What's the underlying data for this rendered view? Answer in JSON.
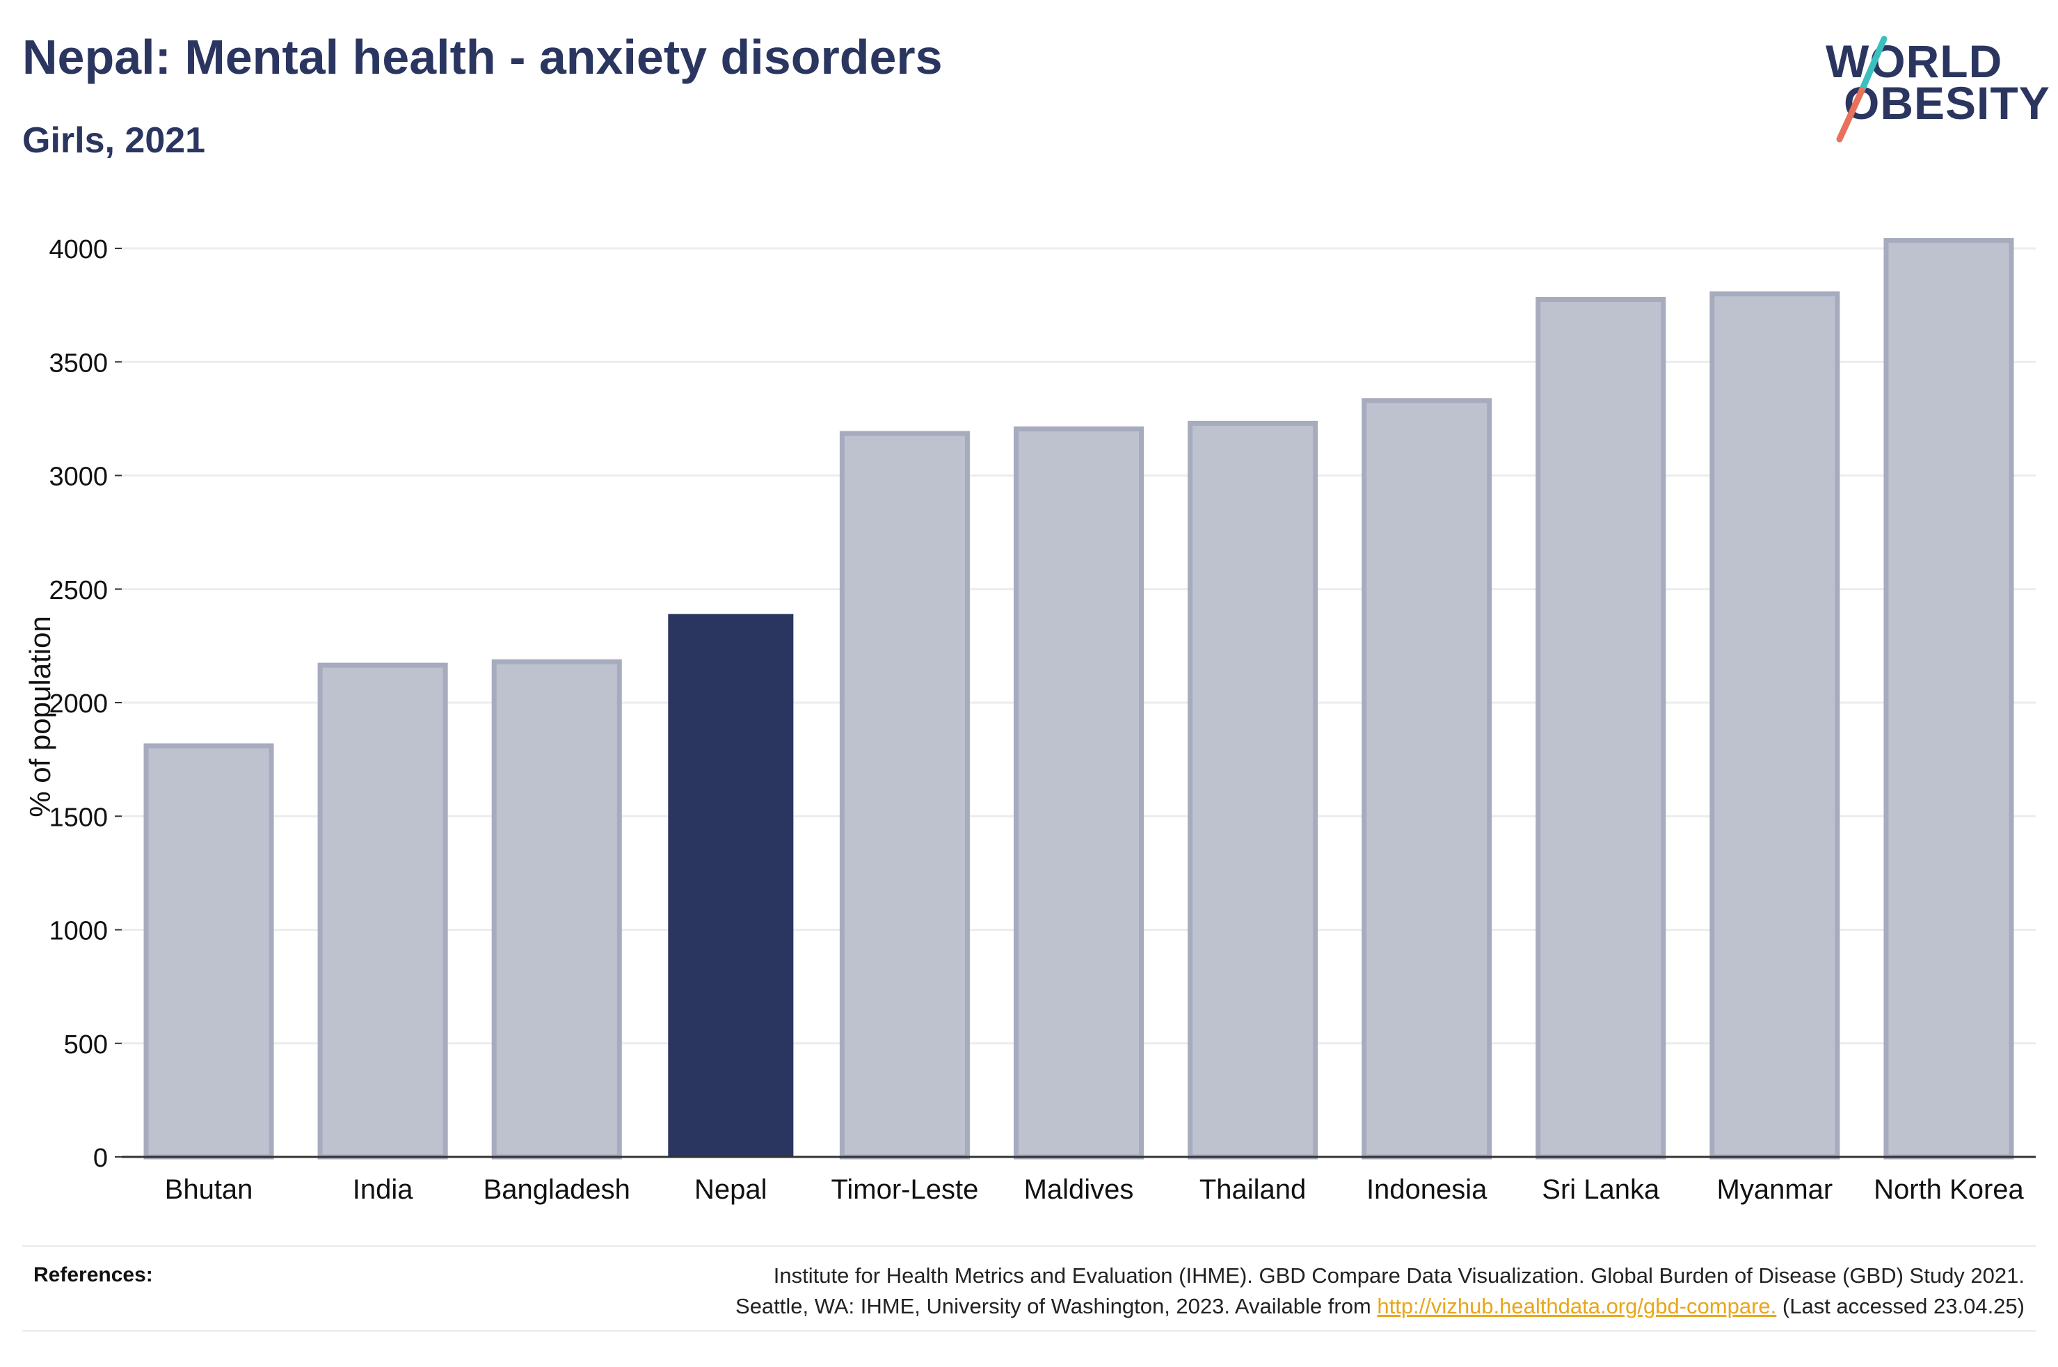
{
  "header": {
    "title": "Nepal: Mental health - anxiety disorders",
    "subtitle": "Girls, 2021"
  },
  "logo": {
    "line1": "WORLD",
    "line2": "OBESITY",
    "colors": {
      "text": "#2b3660",
      "slash_top": "#3bbfbf",
      "slash_bottom": "#e8715c"
    }
  },
  "chart_data": {
    "type": "bar",
    "title": "",
    "ylabel": "% of population",
    "xlabel": "",
    "ylim": [
      0,
      4000
    ],
    "yticks": [
      0,
      500,
      1000,
      1500,
      2000,
      2500,
      3000,
      3500,
      4000
    ],
    "grid": true,
    "categories": [
      "Bhutan",
      "India",
      "Bangladesh",
      "Nepal",
      "Timor-Leste",
      "Maldives",
      "Thailand",
      "Indonesia",
      "Sri Lanka",
      "Myanmar",
      "North Korea"
    ],
    "values": [
      1810,
      2165,
      2180,
      2390,
      3185,
      3205,
      3230,
      3330,
      3775,
      3800,
      4035
    ],
    "highlight": "Nepal",
    "colors": {
      "highlight": "#2b3660",
      "other_fill": "#bec1ce",
      "other_stroke": "#a6abbe",
      "grid": "#ececf0",
      "axis": "#333333"
    }
  },
  "references": {
    "label": "References:",
    "line1": "Institute for Health Metrics and Evaluation (IHME). GBD Compare Data Visualization. Global Burden of Disease (GBD) Study 2021.",
    "line2_prefix": "Seattle, WA: IHME, University of Washington, 2023. Available from",
    "link": "http://vizhub.healthdata.org/gbd-compare.",
    "line2_suffix": "(Last accessed 23.04.25)"
  }
}
